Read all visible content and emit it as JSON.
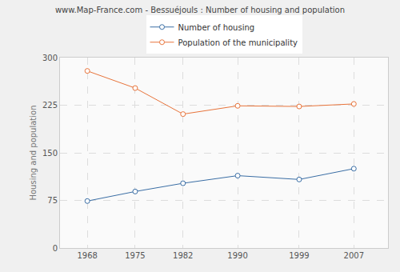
{
  "chart_data": {
    "type": "line",
    "title": "www.Map-France.com - Bessuéjouls : Number of housing and population",
    "y_label": "Housing and population",
    "x": [
      1968,
      1975,
      1982,
      1990,
      1999,
      2007
    ],
    "series": [
      {
        "name": "Number of housing",
        "color": "#3a6ea5",
        "marker": "circle",
        "values": [
          74,
          89,
          102,
          114,
          108,
          125
        ]
      },
      {
        "name": "Population of the municipality",
        "color": "#e8743b",
        "marker": "circle",
        "values": [
          279,
          252,
          211,
          224,
          223,
          227
        ]
      }
    ],
    "xlim": [
      1964,
      2012
    ],
    "xticks": [
      1968,
      1975,
      1982,
      1990,
      1999,
      2007
    ],
    "ylim": [
      0,
      300
    ],
    "yticks": [
      0,
      75,
      150,
      225,
      300
    ],
    "grid": true,
    "legend": "top"
  }
}
